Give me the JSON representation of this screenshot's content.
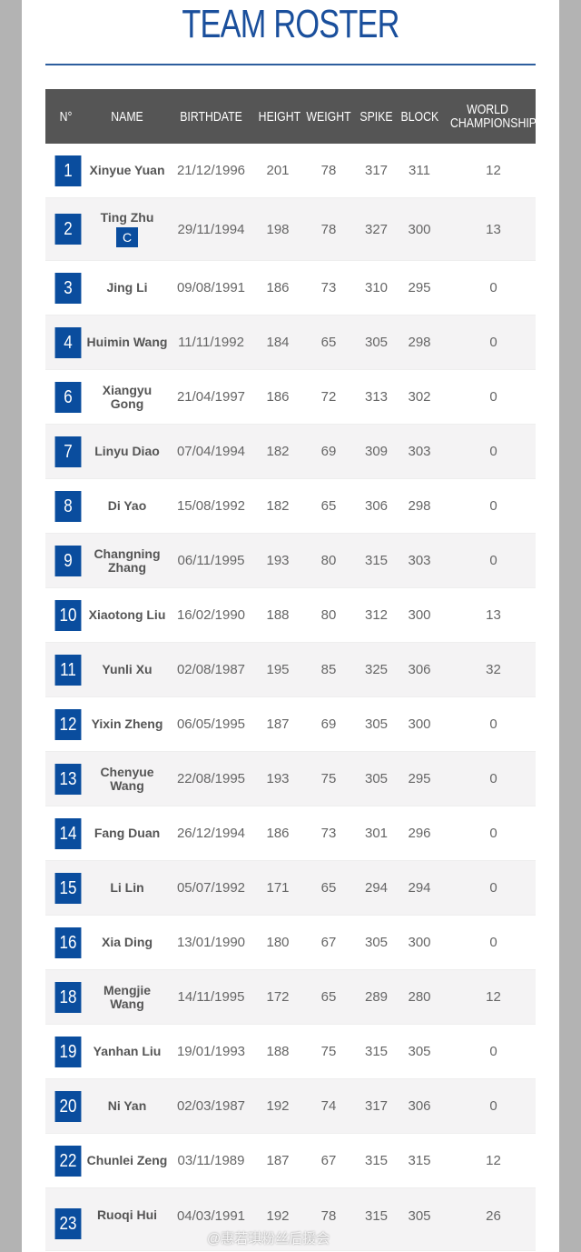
{
  "title": "TEAM ROSTER",
  "headers": [
    "N°",
    "NAME",
    "BIRTHDATE",
    "HEIGHT",
    "WEIGHT",
    "SPIKE",
    "BLOCK",
    "WORLD CHAMPIONSHIPS"
  ],
  "captain_label": "C",
  "colors": {
    "accent": "#0a4d9e",
    "header_bg": "#555555"
  },
  "players": [
    {
      "no": "1",
      "name": "Xinyue Yuan",
      "birthdate": "21/12/1996",
      "height": "201",
      "weight": "78",
      "spike": "317",
      "block": "311",
      "world": "12"
    },
    {
      "no": "2",
      "name": "Ting Zhu",
      "captain": true,
      "birthdate": "29/11/1994",
      "height": "198",
      "weight": "78",
      "spike": "327",
      "block": "300",
      "world": "13"
    },
    {
      "no": "3",
      "name": "Jing Li",
      "birthdate": "09/08/1991",
      "height": "186",
      "weight": "73",
      "spike": "310",
      "block": "295",
      "world": "0"
    },
    {
      "no": "4",
      "name": "Huimin Wang",
      "birthdate": "11/11/1992",
      "height": "184",
      "weight": "65",
      "spike": "305",
      "block": "298",
      "world": "0"
    },
    {
      "no": "6",
      "name": "Xiangyu Gong",
      "birthdate": "21/04/1997",
      "height": "186",
      "weight": "72",
      "spike": "313",
      "block": "302",
      "world": "0"
    },
    {
      "no": "7",
      "name": "Linyu Diao",
      "birthdate": "07/04/1994",
      "height": "182",
      "weight": "69",
      "spike": "309",
      "block": "303",
      "world": "0"
    },
    {
      "no": "8",
      "name": "Di Yao",
      "birthdate": "15/08/1992",
      "height": "182",
      "weight": "65",
      "spike": "306",
      "block": "298",
      "world": "0"
    },
    {
      "no": "9",
      "name": "Changning Zhang",
      "birthdate": "06/11/1995",
      "height": "193",
      "weight": "80",
      "spike": "315",
      "block": "303",
      "world": "0"
    },
    {
      "no": "10",
      "name": "Xiaotong Liu",
      "birthdate": "16/02/1990",
      "height": "188",
      "weight": "80",
      "spike": "312",
      "block": "300",
      "world": "13"
    },
    {
      "no": "11",
      "name": "Yunli Xu",
      "birthdate": "02/08/1987",
      "height": "195",
      "weight": "85",
      "spike": "325",
      "block": "306",
      "world": "32"
    },
    {
      "no": "12",
      "name": "Yixin Zheng",
      "birthdate": "06/05/1995",
      "height": "187",
      "weight": "69",
      "spike": "305",
      "block": "300",
      "world": "0"
    },
    {
      "no": "13",
      "name": "Chenyue Wang",
      "birthdate": "22/08/1995",
      "height": "193",
      "weight": "75",
      "spike": "305",
      "block": "295",
      "world": "0"
    },
    {
      "no": "14",
      "name": "Fang Duan",
      "birthdate": "26/12/1994",
      "height": "186",
      "weight": "73",
      "spike": "301",
      "block": "296",
      "world": "0"
    },
    {
      "no": "15",
      "name": "Li Lin",
      "birthdate": "05/07/1992",
      "height": "171",
      "weight": "65",
      "spike": "294",
      "block": "294",
      "world": "0"
    },
    {
      "no": "16",
      "name": "Xia Ding",
      "birthdate": "13/01/1990",
      "height": "180",
      "weight": "67",
      "spike": "305",
      "block": "300",
      "world": "0"
    },
    {
      "no": "18",
      "name": "Mengjie Wang",
      "birthdate": "14/11/1995",
      "height": "172",
      "weight": "65",
      "spike": "289",
      "block": "280",
      "world": "12"
    },
    {
      "no": "19",
      "name": "Yanhan Liu",
      "birthdate": "19/01/1993",
      "height": "188",
      "weight": "75",
      "spike": "315",
      "block": "305",
      "world": "0"
    },
    {
      "no": "20",
      "name": "Ni Yan",
      "birthdate": "02/03/1987",
      "height": "192",
      "weight": "74",
      "spike": "317",
      "block": "306",
      "world": "0"
    },
    {
      "no": "22",
      "name": "Chunlei Zeng",
      "birthdate": "03/11/1989",
      "height": "187",
      "weight": "67",
      "spike": "315",
      "block": "315",
      "world": "12"
    },
    {
      "no": "23",
      "name": "Ruoqi Hui",
      "birthdate": "04/03/1991",
      "height": "192",
      "weight": "78",
      "spike": "315",
      "block": "305",
      "world": "26"
    }
  ],
  "watermark": "@惠若琪粉丝后援会"
}
